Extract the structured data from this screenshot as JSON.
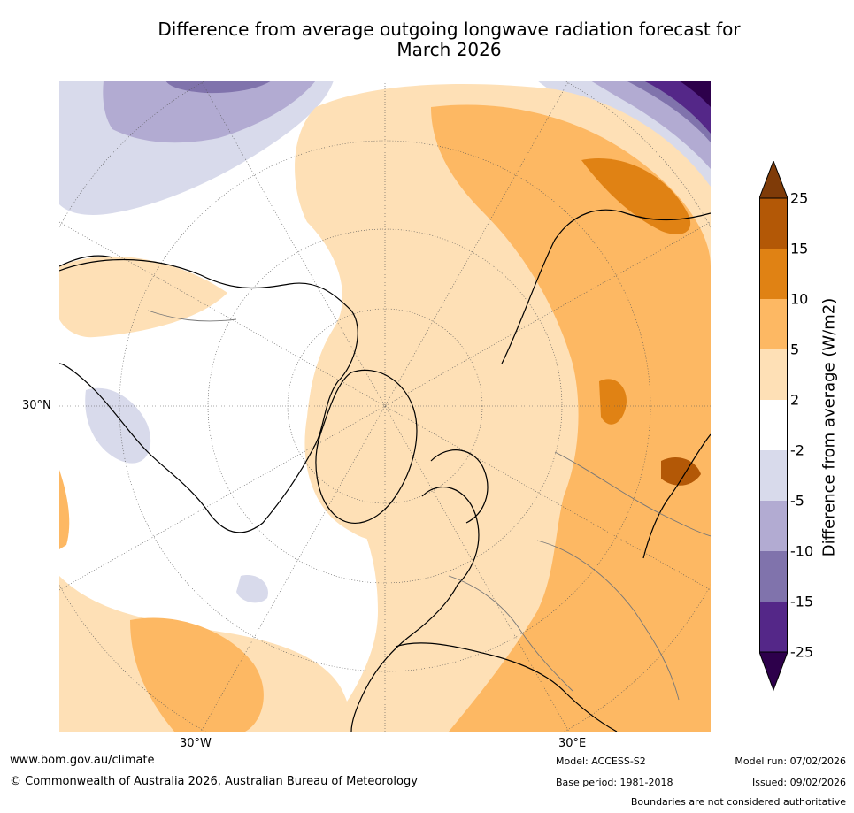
{
  "title_line1": "Difference from average outgoing longwave radiation forecast for",
  "title_line2": "March 2026",
  "axis_labels": {
    "lat": "30°N",
    "lon_left": "30°W",
    "lon_right": "30°E"
  },
  "colorbar": {
    "label": "Difference from average (W/m2)",
    "ticks": [
      "25",
      "15",
      "10",
      "5",
      "2",
      "-2",
      "-5",
      "-10",
      "-15",
      "-25"
    ],
    "colors": {
      "above_25": "#7f3b08",
      "b15_25": "#b35806",
      "b10_15": "#e08214",
      "b5_10": "#fdb863",
      "b2_5": "#fee0b6",
      "neutral": "#ffffff",
      "n2_5": "#d8daeb",
      "n5_10": "#b2abd2",
      "n10_15": "#8073ac",
      "n15_25": "#542788",
      "below_25": "#2d004b"
    }
  },
  "footer": {
    "website": "www.bom.gov.au/climate",
    "copyright": "© Commonwealth of Australia 2026, Australian Bureau of Meteorology",
    "model": "Model: ACCESS-S2",
    "base_period": "Base period: 1981-2018",
    "model_run": "Model run: 07/02/2026",
    "issued": "Issued: 09/02/2026",
    "disclaimer": "Boundaries are not considered authoritative"
  }
}
